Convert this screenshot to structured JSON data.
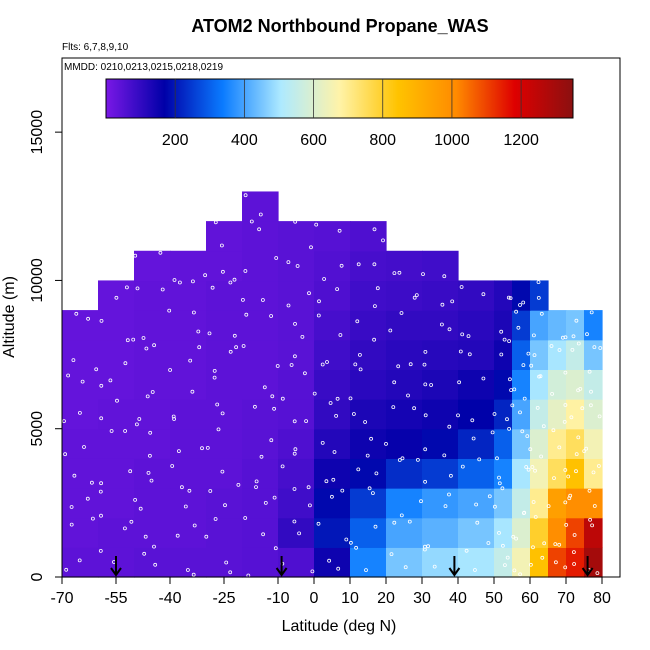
{
  "chart_data": {
    "type": "heatmap",
    "title": "ATOM2 Northbound Propane_WAS",
    "flights_label": "Flts: 6,7,8,9,10",
    "dates_label": "MMDD: 0210,0213,0215,0218,0219",
    "xlabel": "Latitude (deg N)",
    "ylabel": "Altitude (m)",
    "xlim": [
      -70,
      85
    ],
    "ylim": [
      0,
      17500
    ],
    "x_ticks": [
      -70,
      -55,
      -40,
      -25,
      -10,
      0,
      10,
      20,
      30,
      40,
      50,
      60,
      70,
      80
    ],
    "y_ticks": [
      0,
      5000,
      10000,
      15000
    ],
    "colorbar": {
      "range": [
        0,
        1350
      ],
      "ticks": [
        200,
        400,
        600,
        800,
        1000,
        1200
      ],
      "colors": [
        "#7a18e6",
        "#0000a8",
        "#0a7bff",
        "#aeeaff",
        "#fff3a8",
        "#ffc300",
        "#ff8a00",
        "#de0000",
        "#8b1010"
      ]
    },
    "arrows_latitude": [
      -55,
      -9,
      39,
      76
    ],
    "bins": {
      "lat_edges": [
        -70,
        -60,
        -50,
        -40,
        -30,
        -20,
        -10,
        0,
        10,
        20,
        30,
        40,
        50,
        55,
        60,
        65,
        70,
        75,
        80
      ],
      "alt_edges": [
        0,
        1000,
        2000,
        3000,
        4000,
        5000,
        6000,
        7000,
        8000,
        9000,
        10000,
        11000,
        12000,
        13000
      ],
      "values": [
        [
          40,
          40,
          45,
          45,
          45,
          50,
          60,
          150,
          350,
          450,
          480,
          500,
          550,
          650,
          850,
          1100,
          1150,
          1300
        ],
        [
          35,
          40,
          40,
          40,
          45,
          50,
          100,
          200,
          300,
          400,
          420,
          450,
          500,
          600,
          800,
          1000,
          1100,
          1250
        ],
        [
          35,
          35,
          40,
          40,
          45,
          50,
          80,
          180,
          250,
          350,
          380,
          400,
          450,
          550,
          700,
          950,
          1000,
          1000
        ],
        [
          35,
          35,
          40,
          40,
          40,
          50,
          70,
          150,
          180,
          230,
          250,
          300,
          350,
          500,
          650,
          750,
          850,
          700
        ],
        [
          35,
          35,
          35,
          40,
          40,
          45,
          60,
          120,
          150,
          160,
          180,
          220,
          300,
          450,
          600,
          700,
          750,
          650
        ],
        [
          30,
          35,
          35,
          40,
          40,
          45,
          50,
          100,
          130,
          140,
          150,
          170,
          220,
          400,
          550,
          620,
          680,
          600
        ],
        [
          30,
          30,
          35,
          35,
          40,
          40,
          50,
          90,
          110,
          120,
          130,
          150,
          180,
          350,
          500,
          580,
          600,
          550
        ],
        [
          30,
          30,
          35,
          35,
          40,
          40,
          45,
          80,
          100,
          110,
          115,
          120,
          150,
          300,
          450,
          500,
          550,
          450
        ],
        [
          30,
          30,
          35,
          35,
          40,
          40,
          45,
          70,
          90,
          100,
          100,
          110,
          130,
          250,
          400,
          430,
          450,
          350
        ],
        [
          null,
          30,
          35,
          35,
          40,
          40,
          45,
          60,
          80,
          85,
          90,
          100,
          120,
          180,
          250,
          null,
          null,
          null
        ],
        [
          null,
          null,
          30,
          35,
          35,
          40,
          45,
          55,
          70,
          75,
          80,
          null,
          null,
          null,
          null,
          null,
          null,
          null
        ],
        [
          null,
          null,
          null,
          null,
          35,
          40,
          45,
          50,
          60,
          null,
          null,
          null,
          null,
          null,
          null,
          null,
          null,
          null
        ],
        [
          null,
          null,
          null,
          null,
          null,
          40,
          null,
          null,
          null,
          null,
          null,
          null,
          null,
          null,
          null,
          null,
          null,
          null
        ]
      ]
    }
  }
}
